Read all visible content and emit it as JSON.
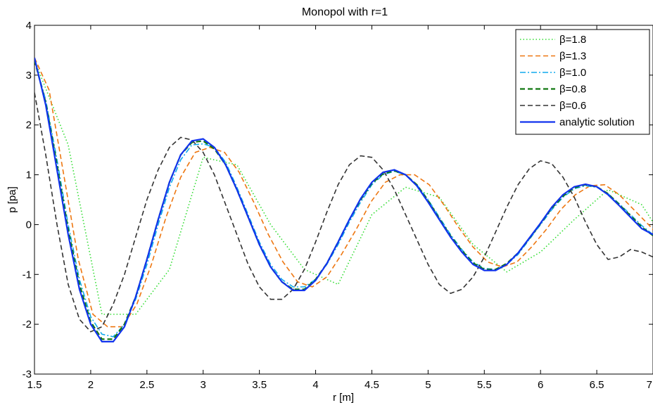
{
  "chart_data": {
    "type": "line",
    "title": "Monopol with r=1",
    "xlabel": "r  [m]",
    "ylabel": "p  [pa]",
    "xlim": [
      1.5,
      7
    ],
    "ylim": [
      -3,
      4
    ],
    "xticks": [
      "1.5",
      "2",
      "2.5",
      "3",
      "3.5",
      "4",
      "4.5",
      "5",
      "5.5",
      "6",
      "6.5",
      "7"
    ],
    "yticks": [
      "-3",
      "-2",
      "-1",
      "0",
      "1",
      "2",
      "3",
      "4"
    ],
    "grid": false,
    "legend_position": "top-right",
    "series": [
      {
        "name": "β=1.8",
        "color": "#33dd33",
        "dash": "dotted",
        "x": [
          1.5,
          1.8,
          2.1,
          2.4,
          2.7,
          3.0,
          3.3,
          3.6,
          3.9,
          4.2,
          4.5,
          4.8,
          5.1,
          5.4,
          5.7,
          6.0,
          6.3,
          6.6,
          6.9,
          7.0
        ],
        "y": [
          3.3,
          1.6,
          -1.8,
          -1.8,
          -0.9,
          1.35,
          1.2,
          0.0,
          -0.9,
          -1.2,
          0.2,
          0.75,
          0.55,
          -0.4,
          -0.95,
          -0.55,
          0.1,
          0.7,
          0.4,
          0.05
        ]
      },
      {
        "name": "β=1.3",
        "color": "#ee7711",
        "dash": "dashed",
        "x": [
          1.5,
          1.63,
          1.76,
          1.89,
          2.02,
          2.15,
          2.28,
          2.41,
          2.54,
          2.67,
          2.8,
          2.93,
          3.06,
          3.19,
          3.32,
          3.45,
          3.58,
          3.71,
          3.84,
          3.97,
          4.1,
          4.23,
          4.36,
          4.49,
          4.62,
          4.75,
          4.88,
          5.01,
          5.14,
          5.27,
          5.4,
          5.53,
          5.66,
          5.79,
          5.92,
          6.05,
          6.18,
          6.31,
          6.44,
          6.57,
          6.7,
          6.83,
          6.96,
          7.0
        ],
        "y": [
          3.35,
          2.7,
          1.0,
          -0.7,
          -1.8,
          -2.05,
          -2.05,
          -1.6,
          -0.8,
          0.15,
          0.95,
          1.45,
          1.55,
          1.45,
          1.05,
          0.45,
          -0.2,
          -0.75,
          -1.15,
          -1.25,
          -1.05,
          -0.6,
          -0.1,
          0.45,
          0.85,
          1.0,
          1.0,
          0.8,
          0.4,
          -0.05,
          -0.45,
          -0.75,
          -0.85,
          -0.75,
          -0.45,
          -0.1,
          0.3,
          0.6,
          0.78,
          0.8,
          0.6,
          0.3,
          0.0,
          -0.1
        ]
      },
      {
        "name": "β=1.0",
        "color": "#11aaee",
        "dash": "dashdot",
        "x": [
          1.5,
          1.6,
          1.7,
          1.8,
          1.9,
          2.0,
          2.1,
          2.2,
          2.3,
          2.4,
          2.5,
          2.6,
          2.7,
          2.8,
          2.9,
          3.0,
          3.1,
          3.2,
          3.3,
          3.4,
          3.5,
          3.6,
          3.7,
          3.8,
          3.9,
          4.0,
          4.1,
          4.2,
          4.3,
          4.4,
          4.5,
          4.6,
          4.7,
          4.8,
          4.9,
          5.0,
          5.1,
          5.2,
          5.3,
          5.4,
          5.5,
          5.6,
          5.7,
          5.8,
          5.9,
          6.0,
          6.1,
          6.2,
          6.3,
          6.4,
          6.5,
          6.6,
          6.7,
          6.8,
          6.9,
          7.0
        ],
        "y": [
          3.3,
          2.5,
          1.3,
          0.0,
          -1.1,
          -1.85,
          -2.2,
          -2.25,
          -2.0,
          -1.5,
          -0.8,
          0.0,
          0.75,
          1.3,
          1.6,
          1.62,
          1.55,
          1.25,
          0.75,
          0.2,
          -0.35,
          -0.8,
          -1.1,
          -1.25,
          -1.25,
          -1.1,
          -0.8,
          -0.4,
          0.05,
          0.45,
          0.8,
          1.0,
          1.07,
          1.0,
          0.8,
          0.5,
          0.15,
          -0.2,
          -0.5,
          -0.75,
          -0.88,
          -0.9,
          -0.8,
          -0.6,
          -0.3,
          0.0,
          0.3,
          0.55,
          0.72,
          0.78,
          0.75,
          0.62,
          0.42,
          0.2,
          -0.02,
          -0.2
        ]
      },
      {
        "name": "β=0.8",
        "color": "#117711",
        "dash": "dashed",
        "x": [
          1.5,
          1.6,
          1.7,
          1.8,
          1.9,
          2.0,
          2.1,
          2.2,
          2.3,
          2.4,
          2.5,
          2.6,
          2.7,
          2.8,
          2.9,
          3.0,
          3.1,
          3.2,
          3.3,
          3.4,
          3.5,
          3.6,
          3.7,
          3.8,
          3.9,
          4.0,
          4.1,
          4.2,
          4.3,
          4.4,
          4.5,
          4.6,
          4.7,
          4.8,
          4.9,
          5.0,
          5.1,
          5.2,
          5.3,
          5.4,
          5.5,
          5.6,
          5.7,
          5.8,
          5.9,
          6.0,
          6.1,
          6.2,
          6.3,
          6.4,
          6.5,
          6.6,
          6.7,
          6.8,
          6.9,
          7.0
        ],
        "y": [
          3.3,
          2.45,
          1.2,
          -0.1,
          -1.2,
          -1.95,
          -2.3,
          -2.3,
          -2.0,
          -1.45,
          -0.7,
          0.1,
          0.85,
          1.4,
          1.65,
          1.68,
          1.52,
          1.2,
          0.7,
          0.15,
          -0.4,
          -0.85,
          -1.15,
          -1.3,
          -1.3,
          -1.1,
          -0.78,
          -0.35,
          0.1,
          0.5,
          0.83,
          1.02,
          1.08,
          1.0,
          0.8,
          0.48,
          0.12,
          -0.23,
          -0.52,
          -0.77,
          -0.9,
          -0.9,
          -0.78,
          -0.57,
          -0.28,
          0.02,
          0.33,
          0.57,
          0.74,
          0.8,
          0.76,
          0.62,
          0.4,
          0.18,
          -0.05,
          -0.22
        ]
      },
      {
        "name": "β=0.6",
        "color": "#333333",
        "dash": "dashed",
        "x": [
          1.5,
          1.6,
          1.7,
          1.8,
          1.9,
          2.0,
          2.1,
          2.2,
          2.3,
          2.4,
          2.5,
          2.6,
          2.7,
          2.8,
          2.9,
          3.0,
          3.1,
          3.2,
          3.3,
          3.4,
          3.5,
          3.6,
          3.7,
          3.8,
          3.9,
          4.0,
          4.1,
          4.2,
          4.3,
          4.4,
          4.5,
          4.6,
          4.7,
          4.8,
          4.9,
          5.0,
          5.1,
          5.2,
          5.3,
          5.4,
          5.5,
          5.6,
          5.7,
          5.8,
          5.9,
          6.0,
          6.1,
          6.2,
          6.3,
          6.4,
          6.5,
          6.6,
          6.7,
          6.8,
          6.9,
          7.0
        ],
        "y": [
          2.65,
          1.4,
          0.0,
          -1.2,
          -1.9,
          -2.15,
          -2.05,
          -1.6,
          -1.0,
          -0.25,
          0.5,
          1.1,
          1.55,
          1.75,
          1.7,
          1.45,
          1.0,
          0.4,
          -0.2,
          -0.8,
          -1.25,
          -1.5,
          -1.5,
          -1.3,
          -0.9,
          -0.35,
          0.25,
          0.8,
          1.2,
          1.38,
          1.35,
          1.1,
          0.7,
          0.2,
          -0.3,
          -0.8,
          -1.2,
          -1.38,
          -1.3,
          -1.05,
          -0.65,
          -0.15,
          0.35,
          0.8,
          1.12,
          1.28,
          1.22,
          0.95,
          0.55,
          0.05,
          -0.4,
          -0.7,
          -0.65,
          -0.5,
          -0.55,
          -0.65
        ]
      },
      {
        "name": "analytic solution",
        "color": "#1133ee",
        "dash": "solid",
        "x": [
          1.5,
          1.6,
          1.7,
          1.8,
          1.9,
          2.0,
          2.1,
          2.2,
          2.3,
          2.4,
          2.5,
          2.6,
          2.7,
          2.8,
          2.9,
          3.0,
          3.1,
          3.2,
          3.3,
          3.4,
          3.5,
          3.6,
          3.7,
          3.8,
          3.9,
          4.0,
          4.1,
          4.2,
          4.3,
          4.4,
          4.5,
          4.6,
          4.7,
          4.8,
          4.9,
          5.0,
          5.1,
          5.2,
          5.3,
          5.4,
          5.5,
          5.6,
          5.7,
          5.8,
          5.9,
          6.0,
          6.1,
          6.2,
          6.3,
          6.4,
          6.5,
          6.6,
          6.7,
          6.8,
          6.9,
          7.0
        ],
        "y": [
          3.35,
          2.4,
          1.1,
          -0.2,
          -1.3,
          -2.0,
          -2.35,
          -2.35,
          -2.05,
          -1.45,
          -0.7,
          0.1,
          0.85,
          1.4,
          1.68,
          1.72,
          1.55,
          1.2,
          0.7,
          0.15,
          -0.4,
          -0.85,
          -1.15,
          -1.32,
          -1.32,
          -1.12,
          -0.78,
          -0.35,
          0.1,
          0.52,
          0.85,
          1.05,
          1.1,
          1.0,
          0.78,
          0.45,
          0.1,
          -0.25,
          -0.55,
          -0.8,
          -0.92,
          -0.92,
          -0.8,
          -0.57,
          -0.27,
          0.03,
          0.35,
          0.6,
          0.76,
          0.81,
          0.76,
          0.6,
          0.38,
          0.15,
          -0.08,
          -0.2
        ]
      }
    ]
  }
}
